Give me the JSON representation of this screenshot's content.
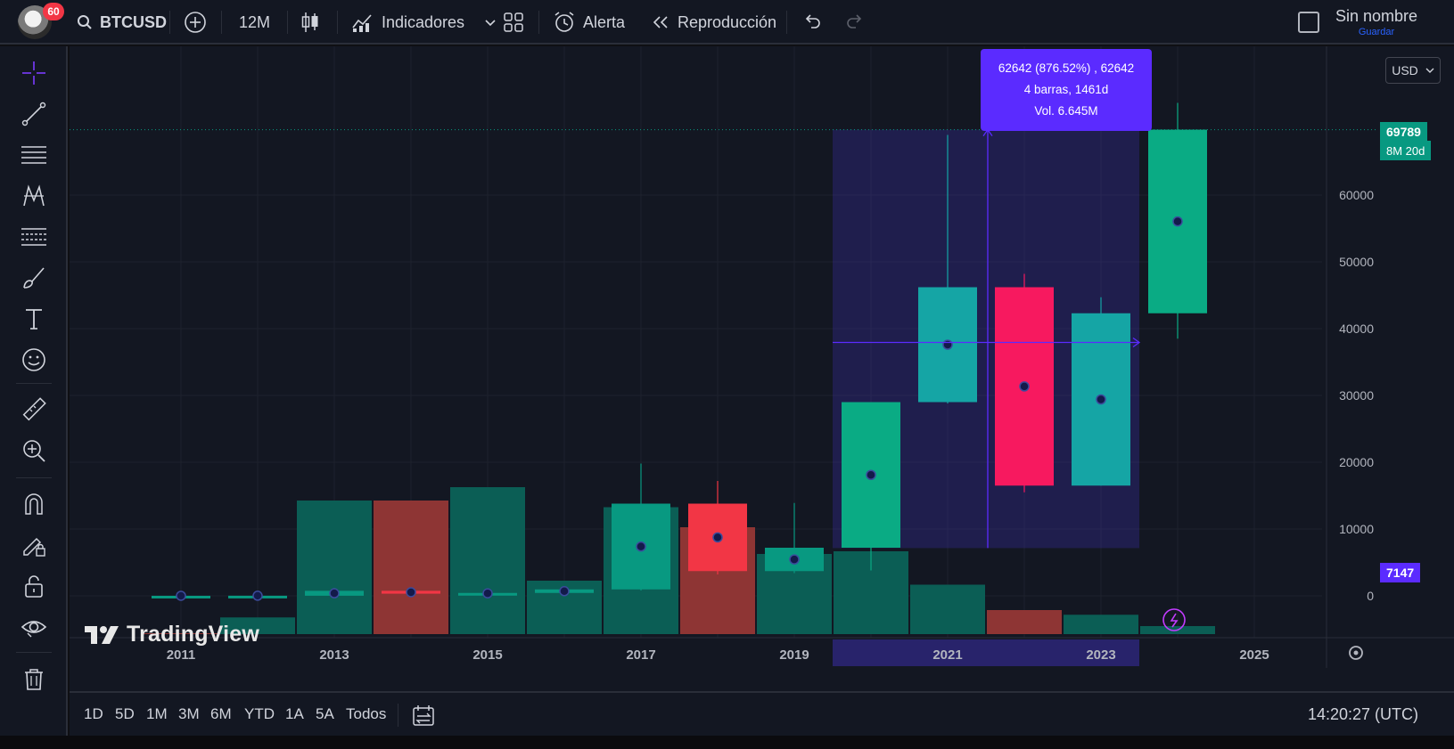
{
  "toolbar": {
    "notification_count": "60",
    "symbol": "BTCUSD",
    "interval": "12M",
    "indicators_label": "Indicadores",
    "alert_label": "Alerta",
    "replay_label": "Reproducción",
    "layout_name": "Sin nombre",
    "save_label": "Guardar"
  },
  "left_tools": [
    "crosshair-icon",
    "trend-line-icon",
    "horizontal-lines-icon",
    "pattern-icon",
    "fib-icon",
    "brush-icon",
    "text-icon",
    "emoji-icon",
    "ruler-icon",
    "zoom-in-icon",
    "magnet-icon",
    "lock-pencil-icon",
    "lock-icon",
    "eye-icon",
    "trash-icon"
  ],
  "currency_selector": "USD",
  "measure_tooltip": {
    "line1": "62642 (876.52%) , 62642",
    "line2": "4 barras, 1461d",
    "line3": "Vol. 6.645M"
  },
  "price_labels": {
    "current_price": "69789",
    "countdown": "8M 20d",
    "measure_low": "7147"
  },
  "watermark": "TradingView",
  "range_buttons": [
    "1D",
    "5D",
    "1M",
    "3M",
    "6M",
    "YTD",
    "1A",
    "5A",
    "Todos"
  ],
  "clock": "14:20:27 (UTC)",
  "colors": {
    "up": "#089981",
    "down": "#f23645",
    "measure": "#5b2bff",
    "background": "#131722"
  },
  "chart_data": {
    "type": "candlestick",
    "interval": "12M",
    "x_tick_labels": [
      "2011",
      "2013",
      "2015",
      "2017",
      "2019",
      "2021",
      "2023",
      "2025"
    ],
    "y_tick_labels": [
      "0",
      "10000",
      "20000",
      "30000",
      "40000",
      "50000",
      "60000"
    ],
    "ylim": [
      -6000,
      76000
    ],
    "grid": true,
    "candles": [
      {
        "year": 2011,
        "open": 0.3,
        "high": 32,
        "low": 0.3,
        "close": 4.7
      },
      {
        "year": 2012,
        "open": 4.7,
        "high": 16,
        "low": 4,
        "close": 13.5
      },
      {
        "year": 2013,
        "open": 13.5,
        "high": 1160,
        "low": 13,
        "close": 750
      },
      {
        "year": 2014,
        "open": 750,
        "high": 1000,
        "low": 160,
        "close": 320
      },
      {
        "year": 2015,
        "open": 320,
        "high": 500,
        "low": 150,
        "close": 430
      },
      {
        "year": 2016,
        "open": 430,
        "high": 1000,
        "low": 350,
        "close": 960
      },
      {
        "year": 2017,
        "open": 960,
        "high": 19800,
        "low": 800,
        "close": 13800
      },
      {
        "year": 2018,
        "open": 13800,
        "high": 17200,
        "low": 3200,
        "close": 3700
      },
      {
        "year": 2019,
        "open": 3700,
        "high": 13900,
        "low": 3400,
        "close": 7200
      },
      {
        "year": 2020,
        "open": 7200,
        "high": 29000,
        "low": 3800,
        "close": 29000
      },
      {
        "year": 2021,
        "open": 29000,
        "high": 69000,
        "low": 28800,
        "close": 46200
      },
      {
        "year": 2022,
        "open": 46200,
        "high": 48200,
        "low": 15500,
        "close": 16500
      },
      {
        "year": 2023,
        "open": 16500,
        "high": 44700,
        "low": 16500,
        "close": 42300
      },
      {
        "year": 2024,
        "open": 42300,
        "high": 73800,
        "low": 38500,
        "close": 69789
      }
    ],
    "volume": [
      {
        "year": 2011,
        "dir": "down",
        "value": 0.1
      },
      {
        "year": 2012,
        "dir": "up",
        "value": 2.5
      },
      {
        "year": 2013,
        "dir": "up",
        "value": 20
      },
      {
        "year": 2014,
        "dir": "down",
        "value": 20
      },
      {
        "year": 2015,
        "dir": "up",
        "value": 22
      },
      {
        "year": 2016,
        "dir": "up",
        "value": 8
      },
      {
        "year": 2017,
        "dir": "up",
        "value": 19
      },
      {
        "year": 2018,
        "dir": "down",
        "value": 16
      },
      {
        "year": 2019,
        "dir": "up",
        "value": 12
      },
      {
        "year": 2020,
        "dir": "up",
        "value": 12.4
      },
      {
        "year": 2021,
        "dir": "up",
        "value": 7.4
      },
      {
        "year": 2022,
        "dir": "down",
        "value": 3.6
      },
      {
        "year": 2023,
        "dir": "up",
        "value": 2.9
      },
      {
        "year": 2024,
        "dir": "up",
        "value": 1.2
      }
    ],
    "measure": {
      "from_year": 2020,
      "to_year": 2023,
      "low": 7147,
      "high": 69789
    }
  }
}
